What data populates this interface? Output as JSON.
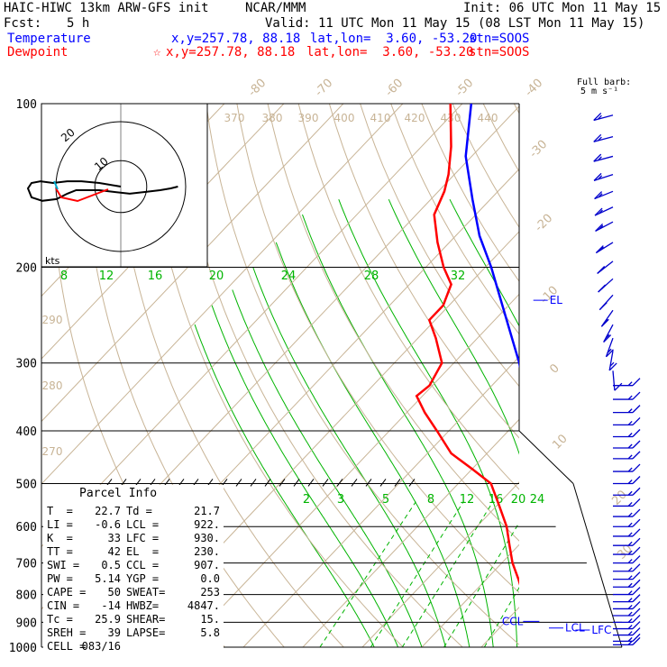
{
  "header": {
    "model": "HAIC-HIWC 13km ARW-GFS init",
    "org": "NCAR/MMM",
    "init": "Init: 06 UTC Mon 11 May 15",
    "fcst_label": "Fcst:",
    "fcst_value": "5 h",
    "valid": "Valid: 11 UTC Mon 11 May 15 (08 LST Mon 11 May 15)",
    "temp_name": "Temperature",
    "temp_xy": "x,y=257.78, 88.18",
    "temp_latlon": "lat,lon=  3.60, -53.20",
    "temp_stn": "stn=SOOS",
    "dew_name": "Dewpoint",
    "dew_xy": "x,y=257.78, 88.18",
    "dew_latlon": "lat,lon=  3.60, -53.20",
    "dew_stn": "stn=SOOS",
    "star": "☆",
    "barb_title": "Full barb:",
    "barb_unit": "5 m s⁻¹"
  },
  "colors": {
    "temperature": "#0000ff",
    "dewpoint": "#ff0000",
    "isotherm": "#c8b496",
    "mixing_ratio": "#00b400",
    "grid": "#000000",
    "barbs": "#0000cc"
  },
  "chart_data": {
    "type": "line",
    "subtype": "skew-T log-p sounding",
    "pressure_levels": [
      100,
      200,
      300,
      400,
      500,
      600,
      700,
      800,
      900,
      1000
    ],
    "pressure_labels": [
      "100",
      "200",
      "300",
      "400",
      "500",
      "600",
      "700",
      "800",
      "900",
      "1000"
    ],
    "ylim": [
      1000,
      100
    ],
    "yscale": "log",
    "isotherm_labels_top": [
      "-80",
      "-70",
      "-60",
      "-50",
      "-40"
    ],
    "isotherm_labels_right": [
      "-30",
      "-20",
      "-10",
      "0",
      "10",
      "20",
      "30",
      "40"
    ],
    "theta_labels_top": [
      "370",
      "380",
      "390",
      "400",
      "410",
      "420",
      "430",
      "440"
    ],
    "theta_labels_left": [
      "290",
      "280",
      "270"
    ],
    "thetae_labels_200": [
      "8",
      "12",
      "16",
      "20",
      "24",
      "28",
      "32"
    ],
    "mixing_ratio_labels": [
      "2",
      "3",
      "5",
      "8",
      "12",
      "16",
      "20",
      "24"
    ],
    "series": [
      {
        "name": "Temperature",
        "points": [
          [
            985,
            23.0
          ],
          [
            950,
            20.2
          ],
          [
            925,
            18.5
          ],
          [
            900,
            16.8
          ],
          [
            850,
            13.5
          ],
          [
            800,
            10.5
          ],
          [
            750,
            7.5
          ],
          [
            700,
            4.8
          ],
          [
            650,
            2.0
          ],
          [
            600,
            -1.0
          ],
          [
            550,
            -4.2
          ],
          [
            500,
            -7.5
          ],
          [
            450,
            -11.5
          ],
          [
            400,
            -16.2
          ],
          [
            350,
            -22.0
          ],
          [
            300,
            -29.0
          ],
          [
            250,
            -38.0
          ],
          [
            200,
            -49.0
          ],
          [
            175,
            -56.0
          ],
          [
            150,
            -63.0
          ],
          [
            125,
            -71.0
          ],
          [
            100,
            -78.5
          ]
        ]
      },
      {
        "name": "Dewpoint",
        "points": [
          [
            985,
            21.0
          ],
          [
            950,
            19.0
          ],
          [
            925,
            17.5
          ],
          [
            900,
            15.8
          ],
          [
            850,
            12.0
          ],
          [
            800,
            8.6
          ],
          [
            750,
            5.4
          ],
          [
            700,
            1.8
          ],
          [
            650,
            -1.5
          ],
          [
            600,
            -5.0
          ],
          [
            550,
            -9.5
          ],
          [
            500,
            -14.5
          ],
          [
            470,
            -20.0
          ],
          [
            440,
            -26.0
          ],
          [
            400,
            -32.0
          ],
          [
            370,
            -37.0
          ],
          [
            345,
            -41.0
          ],
          [
            330,
            -40.5
          ],
          [
            300,
            -42.0
          ],
          [
            270,
            -47.0
          ],
          [
            250,
            -51.0
          ],
          [
            235,
            -51.0
          ],
          [
            215,
            -53.0
          ],
          [
            200,
            -57.0
          ],
          [
            180,
            -62.0
          ],
          [
            160,
            -67.0
          ],
          [
            145,
            -69.0
          ],
          [
            135,
            -71.0
          ],
          [
            120,
            -75.0
          ],
          [
            100,
            -82.0
          ]
        ]
      }
    ],
    "level_markers": [
      {
        "label": "EL",
        "pressure": 230
      },
      {
        "label": "LCL",
        "pressure": 922
      },
      {
        "label": "LFC",
        "pressure": 930
      },
      {
        "label": "CCL",
        "pressure": 907
      }
    ],
    "wind_profile": [
      {
        "p": 105,
        "dir": 255,
        "spd": 18
      },
      {
        "p": 115,
        "dir": 255,
        "spd": 18
      },
      {
        "p": 125,
        "dir": 255,
        "spd": 18
      },
      {
        "p": 135,
        "dir": 252,
        "spd": 18
      },
      {
        "p": 145,
        "dir": 248,
        "spd": 18
      },
      {
        "p": 155,
        "dir": 245,
        "spd": 18
      },
      {
        "p": 165,
        "dir": 242,
        "spd": 18
      },
      {
        "p": 180,
        "dir": 238,
        "spd": 18
      },
      {
        "p": 195,
        "dir": 232,
        "spd": 18
      },
      {
        "p": 210,
        "dir": 228,
        "spd": 18
      },
      {
        "p": 225,
        "dir": 222,
        "spd": 18
      },
      {
        "p": 240,
        "dir": 215,
        "spd": 18
      },
      {
        "p": 255,
        "dir": 208,
        "spd": 18
      },
      {
        "p": 270,
        "dir": 200,
        "spd": 18
      },
      {
        "p": 285,
        "dir": 190,
        "spd": 18
      },
      {
        "p": 310,
        "dir": 175,
        "spd": 12
      },
      {
        "p": 330,
        "dir": 90,
        "spd": 18
      },
      {
        "p": 350,
        "dir": 90,
        "spd": 18
      },
      {
        "p": 370,
        "dir": 90,
        "spd": 18
      },
      {
        "p": 390,
        "dir": 90,
        "spd": 18
      },
      {
        "p": 410,
        "dir": 90,
        "spd": 18
      },
      {
        "p": 430,
        "dir": 90,
        "spd": 18
      },
      {
        "p": 450,
        "dir": 90,
        "spd": 18
      },
      {
        "p": 475,
        "dir": 90,
        "spd": 18
      },
      {
        "p": 500,
        "dir": 90,
        "spd": 18
      },
      {
        "p": 525,
        "dir": 90,
        "spd": 18
      },
      {
        "p": 550,
        "dir": 90,
        "spd": 18
      },
      {
        "p": 575,
        "dir": 90,
        "spd": 18
      },
      {
        "p": 600,
        "dir": 90,
        "spd": 18
      },
      {
        "p": 625,
        "dir": 90,
        "spd": 18
      },
      {
        "p": 650,
        "dir": 90,
        "spd": 18
      },
      {
        "p": 675,
        "dir": 90,
        "spd": 18
      },
      {
        "p": 700,
        "dir": 90,
        "spd": 18
      },
      {
        "p": 725,
        "dir": 90,
        "spd": 18
      },
      {
        "p": 750,
        "dir": 90,
        "spd": 18
      },
      {
        "p": 775,
        "dir": 90,
        "spd": 18
      },
      {
        "p": 800,
        "dir": 90,
        "spd": 18
      },
      {
        "p": 825,
        "dir": 90,
        "spd": 18
      },
      {
        "p": 850,
        "dir": 90,
        "spd": 18
      },
      {
        "p": 875,
        "dir": 90,
        "spd": 18
      },
      {
        "p": 900,
        "dir": 90,
        "spd": 18
      },
      {
        "p": 925,
        "dir": 90,
        "spd": 18
      },
      {
        "p": 950,
        "dir": 90,
        "spd": 18
      },
      {
        "p": 975,
        "dir": 90,
        "spd": 18
      },
      {
        "p": 990,
        "dir": 90,
        "spd": 18
      }
    ],
    "hodograph": {
      "axis_label": "kts",
      "ring_labels": [
        "20",
        "10"
      ],
      "wind_u_v": [
        [
          0,
          0
        ],
        [
          -12,
          2
        ],
        [
          -22,
          3
        ],
        [
          -30,
          3
        ],
        [
          -38,
          2
        ],
        [
          -45,
          3
        ],
        [
          -50,
          2
        ],
        [
          -52,
          -1
        ],
        [
          -50,
          -6
        ],
        [
          -44,
          -8
        ],
        [
          -36,
          -7
        ],
        [
          -30,
          -4
        ],
        [
          -25,
          -2
        ],
        [
          -20,
          -2
        ],
        [
          -12,
          -2
        ],
        [
          -4,
          -3
        ],
        [
          5,
          -4
        ],
        [
          14,
          -3
        ],
        [
          22,
          -2
        ],
        [
          28,
          -1
        ],
        [
          32,
          0
        ]
      ]
    }
  },
  "parcel_info": {
    "title": "Parcel Info",
    "rows": [
      {
        "l1": "T  =",
        "v1": "22.7",
        "l2": "Td =",
        "v2": "21.7"
      },
      {
        "l1": "LI =",
        "v1": "-0.6",
        "l2": "LCL =",
        "v2": "922."
      },
      {
        "l1": "K  =",
        "v1": "33",
        "l2": "LFC =",
        "v2": "930."
      },
      {
        "l1": "TT =",
        "v1": "42",
        "l2": "EL  =",
        "v2": "230."
      },
      {
        "l1": "SWI =",
        "v1": "0.5",
        "l2": "CCL =",
        "v2": "907."
      },
      {
        "l1": "PW =",
        "v1": "5.14",
        "l2": "YGP =",
        "v2": "0.0"
      },
      {
        "l1": "CAPE =",
        "v1": "50",
        "l2": "SWEAT=",
        "v2": "253"
      },
      {
        "l1": "CIN =",
        "v1": "-14",
        "l2": "HWBZ=",
        "v2": "4847."
      },
      {
        "l1": "Tc =",
        "v1": "25.9",
        "l2": "SHEAR=",
        "v2": "15."
      },
      {
        "l1": "SREH =",
        "v1": "39",
        "l2": "LAPSE=",
        "v2": "5.8"
      },
      {
        "l1": "CELL =",
        "v1": "083/16",
        "l2": "",
        "v2": ""
      }
    ]
  }
}
